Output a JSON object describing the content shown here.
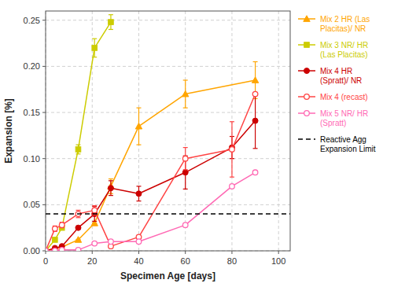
{
  "chart_data": {
    "type": "line",
    "xlabel": "Specimen Age [days]",
    "ylabel": "Expansion [%]",
    "xlim": [
      0,
      105
    ],
    "ylim": [
      0,
      0.26
    ],
    "xticks": [
      0,
      20,
      40,
      60,
      80,
      100
    ],
    "yticks": [
      {
        "value": 0,
        "label": "0.00"
      },
      0.05,
      {
        "value": 0.1,
        "label": "0.10"
      },
      0.15,
      {
        "value": 0.2,
        "label": "0.20"
      },
      0.25
    ],
    "grid": true,
    "legend": "right",
    "series": [
      {
        "name": "Mix 2 HR (Las\nPlacitas)/ NR",
        "color": "#FFA500",
        "marker": "triangle",
        "line_style": "solid",
        "x": [
          0,
          4,
          7,
          14,
          21,
          28,
          40,
          60,
          90
        ],
        "values": [
          0,
          0.002,
          0.004,
          0.012,
          0.03,
          0.07,
          0.135,
          0.17,
          0.185
        ],
        "errors": [
          0,
          0,
          0,
          0,
          0,
          0.008,
          0.02,
          0.015,
          0.02
        ]
      },
      {
        "name": "Mix 3 NR/ HR\n(Las Placitas)",
        "color": "#CCCC00",
        "marker": "square",
        "line_style": "solid",
        "x": [
          0,
          4,
          7,
          14,
          21,
          28
        ],
        "values": [
          0,
          0.012,
          0.025,
          0.11,
          0.22,
          0.248
        ],
        "errors": [
          0,
          0,
          0,
          0.005,
          0.01,
          0.008
        ]
      },
      {
        "name": "Mix 4 HR\n(Spratt)/ NR",
        "color": "#CC0000",
        "marker": "circle",
        "line_style": "solid",
        "x": [
          0,
          4,
          7,
          14,
          21,
          28,
          40,
          60,
          80,
          90
        ],
        "values": [
          0,
          0.003,
          0.005,
          0.025,
          0.04,
          0.068,
          0.062,
          0.085,
          0.112,
          0.141
        ],
        "errors": [
          0,
          0,
          0,
          0,
          0.008,
          0.008,
          0.008,
          0.018,
          0.012,
          0.03
        ]
      },
      {
        "name": "Mix 4 (recast)",
        "color": "#FF4444",
        "marker": "open-circle",
        "line_style": "solid",
        "x": [
          0,
          4,
          7,
          14,
          21,
          28,
          40,
          60,
          80,
          90
        ],
        "values": [
          0,
          0.024,
          0.028,
          0.04,
          0.044,
          0.005,
          0.015,
          0.1,
          0.11,
          0.17
        ],
        "errors": [
          0,
          0.003,
          0.003,
          0.004,
          0.005,
          0,
          0,
          0.012,
          0.03,
          0
        ]
      },
      {
        "name": "Mix 5 NR/ HR\n(Spratt)",
        "color": "#FF69B4",
        "marker": "open-circle",
        "line_style": "solid",
        "x": [
          0,
          4,
          7,
          14,
          21,
          28,
          40,
          60,
          80,
          90
        ],
        "values": [
          0,
          0.0,
          0.001,
          0.001,
          0.008,
          0.01,
          0.01,
          0.028,
          0.07,
          0.085
        ],
        "errors": [
          0,
          0,
          0,
          0,
          0,
          0,
          0,
          0,
          0,
          0
        ]
      },
      {
        "name": "Reactive Agg\nExpansion Limit",
        "type": "hline",
        "color": "#000000",
        "line_style": "dashed",
        "values": [
          0.04
        ]
      }
    ]
  }
}
